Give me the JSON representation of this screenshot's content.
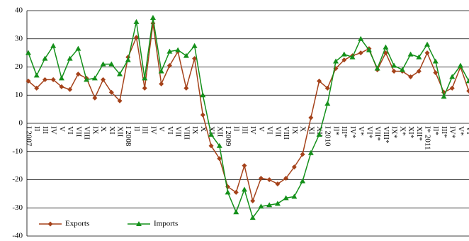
{
  "chart_data": {
    "type": "line",
    "categories": [
      "I 2007",
      "II",
      "III",
      "IV",
      "V",
      "VI",
      "VII",
      "VIII",
      "IX",
      "X",
      "XI",
      "XII",
      "I 2008",
      "II",
      "III",
      "IV",
      "V",
      "VI",
      "VII",
      "VIII",
      "IX",
      "X",
      "XI",
      "XII",
      "I 2009",
      "II",
      "III",
      "IV",
      "V",
      "VI",
      "VII",
      "VIII",
      "IX",
      "X",
      "XI",
      "XII",
      "I 2010",
      "II*",
      "III*",
      "IV*",
      "V*",
      "VI*",
      "VII*",
      "VIII*",
      "IX*",
      "X*",
      "XI*",
      "XII*",
      "I* 2011",
      "II*",
      "III*",
      "IV*",
      "V*",
      "VI*"
    ],
    "series": [
      {
        "name": "Exports",
        "color": "#a5421a",
        "marker": "diamond",
        "values": [
          15,
          12.5,
          15.5,
          15.5,
          13,
          12,
          17.5,
          16,
          9,
          15.5,
          11,
          8,
          23.5,
          30.5,
          12.5,
          35.5,
          14,
          20.5,
          25.5,
          12.5,
          23,
          3,
          -8,
          -12.5,
          -22.5,
          -24.5,
          -15,
          -27.5,
          -19.5,
          -20,
          -21.5,
          -19.5,
          -15.5,
          -11,
          2,
          15,
          12.5,
          19.5,
          22.5,
          24,
          25,
          26.5,
          19,
          25,
          18.5,
          18.5,
          16.5,
          18.5,
          25,
          18,
          11,
          12.5,
          20,
          11.5
        ]
      },
      {
        "name": "Imports",
        "color": "#14901a",
        "marker": "triangle",
        "values": [
          25,
          17,
          23,
          27.5,
          16,
          23,
          26.5,
          15.5,
          16,
          21,
          21,
          17.5,
          22.5,
          36,
          16,
          37.5,
          18.5,
          25.5,
          26,
          24,
          27.5,
          10,
          -4,
          -8,
          -24.5,
          -31.5,
          -23.5,
          -33.5,
          -29.5,
          -29,
          -28.5,
          -26.5,
          -26,
          -20.5,
          -10.5,
          -4,
          7,
          22,
          24.5,
          23.5,
          30,
          26,
          19.5,
          27,
          20.5,
          19,
          24.5,
          23.5,
          28,
          22,
          9.5,
          16.5,
          20.5,
          15
        ]
      }
    ],
    "ylim": [
      -40,
      40
    ],
    "yticks": [
      -40,
      -30,
      -20,
      -10,
      0,
      10,
      20,
      30,
      40
    ],
    "grid": true,
    "legend": "lower left"
  }
}
